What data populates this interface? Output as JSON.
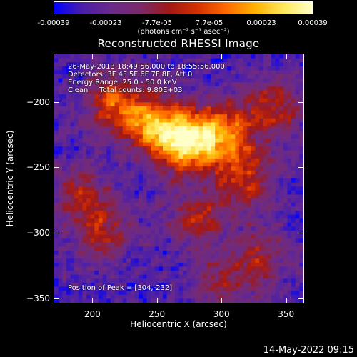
{
  "colorbar": {
    "ticks": [
      "-0.00039",
      "-0.00023",
      "-7.7e-05",
      "7.7e-05",
      "0.00023",
      "0.00039"
    ],
    "unit_label": "(photons cm⁻² s⁻¹ asec⁻²)",
    "colormap": [
      "#0000ff",
      "#4b1fa8",
      "#6a2a8a",
      "#7a2a6a",
      "#a01818",
      "#d43000",
      "#ff6a00",
      "#ffb000",
      "#ffe85a",
      "#ffffc8"
    ]
  },
  "title": "Reconstructed RHESSI Image",
  "annotations": [
    "26-May-2013 18:49:56.000 to 18:55:56.000",
    "Detectors: 3F 4F 5F 6F 7F 8F, Att 0",
    "Energy Range: 25.0 - 50.0 keV",
    "Clean     Total counts: 9.80E+03"
  ],
  "peak_label": "Position of Peak = [304,-232]",
  "footer": "14-May-2022 09:15",
  "chart_data": {
    "type": "heatmap",
    "title": "Reconstructed RHESSI Image",
    "xlabel": "Heliocentric X (arcsec)",
    "ylabel": "Heliocentric Y (arcsec)",
    "xlim": [
      170,
      364
    ],
    "ylim": [
      -354,
      -163
    ],
    "x_ticks": [
      "200",
      "250",
      "300",
      "350"
    ],
    "y_ticks": [
      "-200",
      "-250",
      "-300",
      "-350"
    ],
    "x_tick_values": [
      200,
      250,
      300,
      350
    ],
    "y_tick_values": [
      -200,
      -250,
      -300,
      -350
    ],
    "colorbar_range": [
      -0.00039,
      0.00039
    ],
    "peak": {
      "x": 304,
      "y": -232
    },
    "sources": [
      {
        "x": 270,
        "y": -230,
        "intensity": 1.0
      },
      {
        "x": 300,
        "y": -225,
        "intensity": 0.8
      },
      {
        "x": 245,
        "y": -215,
        "intensity": 0.7
      },
      {
        "x": 215,
        "y": -200,
        "intensity": 0.55
      },
      {
        "x": 320,
        "y": -260,
        "intensity": 0.5
      },
      {
        "x": 210,
        "y": -300,
        "intensity": 0.45
      },
      {
        "x": 280,
        "y": -290,
        "intensity": 0.45
      },
      {
        "x": 340,
        "y": -205,
        "intensity": 0.5
      },
      {
        "x": 330,
        "y": -320,
        "intensity": 0.4
      },
      {
        "x": 190,
        "y": -270,
        "intensity": 0.4
      },
      {
        "x": 300,
        "y": -340,
        "intensity": 0.3
      }
    ]
  }
}
